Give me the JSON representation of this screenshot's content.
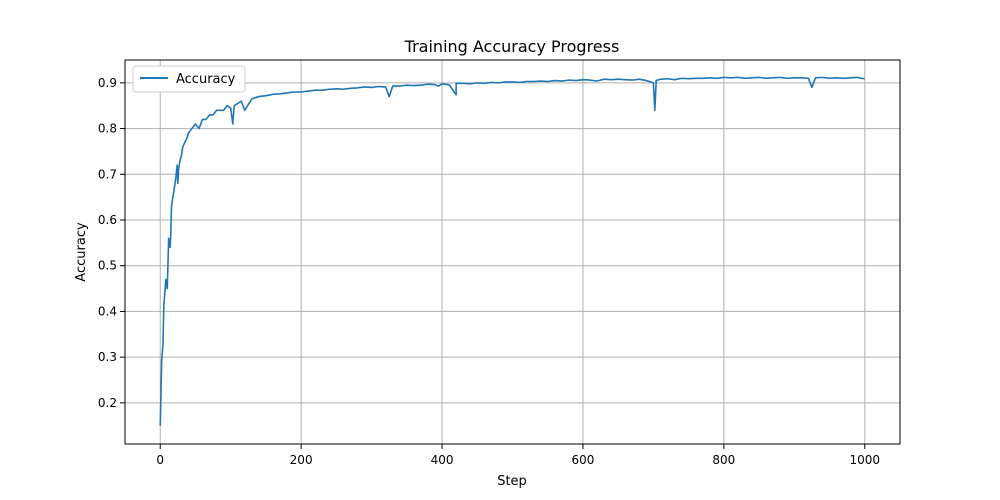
{
  "chart_data": {
    "type": "line",
    "title": "Training Accuracy Progress",
    "xlabel": "Step",
    "ylabel": "Accuracy",
    "xlim": [
      -50,
      1050
    ],
    "ylim": [
      0.11,
      0.95
    ],
    "x_ticks": [
      0,
      200,
      400,
      600,
      800,
      1000
    ],
    "y_ticks": [
      0.2,
      0.3,
      0.4,
      0.5,
      0.6,
      0.7,
      0.8,
      0.9
    ],
    "grid": true,
    "legend_position": "top-left",
    "series": [
      {
        "name": "Accuracy",
        "color": "#1f77b4",
        "x": [
          0,
          2,
          4,
          5,
          6,
          8,
          10,
          12,
          14,
          15,
          16,
          18,
          20,
          22,
          24,
          25,
          26,
          28,
          30,
          32,
          35,
          38,
          40,
          45,
          50,
          55,
          60,
          65,
          70,
          75,
          80,
          85,
          90,
          95,
          100,
          103,
          105,
          110,
          115,
          120,
          130,
          140,
          150,
          160,
          170,
          180,
          190,
          200,
          210,
          220,
          230,
          240,
          250,
          260,
          270,
          280,
          290,
          300,
          310,
          320,
          325,
          330,
          340,
          350,
          360,
          370,
          380,
          390,
          395,
          400,
          410,
          420,
          430,
          420,
          440,
          450,
          460,
          470,
          480,
          490,
          500,
          510,
          520,
          530,
          540,
          550,
          560,
          570,
          580,
          590,
          600,
          610,
          620,
          630,
          640,
          650,
          660,
          670,
          680,
          690,
          700,
          702,
          704,
          710,
          720,
          730,
          740,
          750,
          760,
          770,
          780,
          790,
          800,
          810,
          820,
          830,
          840,
          850,
          860,
          870,
          880,
          890,
          900,
          910,
          920,
          925,
          930,
          940,
          950,
          960,
          970,
          980,
          990,
          995,
          1000
        ],
        "values": [
          0.15,
          0.29,
          0.33,
          0.41,
          0.43,
          0.47,
          0.45,
          0.56,
          0.54,
          0.57,
          0.63,
          0.65,
          0.67,
          0.69,
          0.72,
          0.68,
          0.71,
          0.73,
          0.74,
          0.76,
          0.77,
          0.78,
          0.79,
          0.8,
          0.81,
          0.8,
          0.82,
          0.82,
          0.83,
          0.83,
          0.84,
          0.84,
          0.84,
          0.85,
          0.845,
          0.81,
          0.85,
          0.855,
          0.86,
          0.84,
          0.865,
          0.87,
          0.872,
          0.875,
          0.876,
          0.878,
          0.88,
          0.88,
          0.882,
          0.884,
          0.884,
          0.886,
          0.887,
          0.886,
          0.888,
          0.889,
          0.891,
          0.89,
          0.892,
          0.891,
          0.87,
          0.893,
          0.893,
          0.895,
          0.894,
          0.895,
          0.897,
          0.896,
          0.893,
          0.898,
          0.896,
          0.874,
          0.899,
          0.899,
          0.898,
          0.9,
          0.899,
          0.901,
          0.9,
          0.902,
          0.902,
          0.901,
          0.903,
          0.903,
          0.904,
          0.903,
          0.905,
          0.904,
          0.906,
          0.905,
          0.907,
          0.906,
          0.904,
          0.908,
          0.907,
          0.908,
          0.907,
          0.906,
          0.908,
          0.905,
          0.9,
          0.84,
          0.905,
          0.908,
          0.909,
          0.907,
          0.91,
          0.909,
          0.91,
          0.91,
          0.911,
          0.91,
          0.912,
          0.911,
          0.912,
          0.91,
          0.911,
          0.912,
          0.91,
          0.911,
          0.912,
          0.91,
          0.911,
          0.911,
          0.91,
          0.89,
          0.911,
          0.912,
          0.91,
          0.911,
          0.91,
          0.911,
          0.912,
          0.91,
          0.909
        ]
      }
    ]
  }
}
